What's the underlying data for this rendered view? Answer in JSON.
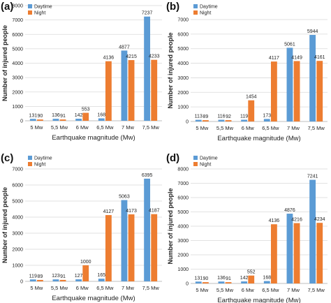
{
  "chart_data": [
    {
      "type": "bar",
      "panel_label": "(a)",
      "categories": [
        "5 Mw",
        "5,5 Mw",
        "6 Mw",
        "6,5 Mw",
        "7 Mw",
        "7,5 Mw"
      ],
      "series": [
        {
          "name": "Daytime",
          "values": [
            131,
            136,
            142,
            168,
            4877,
            7237
          ]
        },
        {
          "name": "Night",
          "values": [
            90,
            91,
            553,
            4136,
            4215,
            4233
          ]
        }
      ],
      "xlabel": "Earthquake magnitude (Mw)",
      "ylabel": "Number of injured people",
      "ylim": [
        0,
        8000
      ],
      "yticks": [
        0,
        1000,
        2000,
        3000,
        4000,
        5000,
        6000,
        7000,
        8000
      ],
      "grid": true,
      "legend": "top-left",
      "colors": [
        "#5b9bd5",
        "#ed7d31"
      ]
    },
    {
      "type": "bar",
      "panel_label": "(b)",
      "categories": [
        "5 Mw",
        "5,5 Mw",
        "6 Mw",
        "6,5 Mw",
        "7 Mw",
        "7,5 Mw"
      ],
      "series": [
        {
          "name": "Daytime",
          "values": [
            113,
            116,
            119,
            173,
            5061,
            5944
          ]
        },
        {
          "name": "Night",
          "values": [
            89,
            92,
            1454,
            4117,
            4149,
            4161
          ]
        }
      ],
      "xlabel": "Earthquake magnitude (Mw)",
      "ylabel": "Number of injured people",
      "ylim": [
        0,
        7000
      ],
      "yticks": [
        0,
        1000,
        2000,
        3000,
        4000,
        5000,
        6000,
        7000
      ],
      "grid": true,
      "legend": "top-left",
      "colors": [
        "#5b9bd5",
        "#ed7d31"
      ]
    },
    {
      "type": "bar",
      "panel_label": "(c)",
      "categories": [
        "5 Mw",
        "5,5 Mw",
        "6 Mw",
        "6,5 Mw",
        "7 Mw",
        "7,5 Mw"
      ],
      "series": [
        {
          "name": "Daytime",
          "values": [
            119,
            123,
            127,
            165,
            5063,
            6395
          ]
        },
        {
          "name": "Night",
          "values": [
            89,
            91,
            1000,
            4127,
            4173,
            4187
          ]
        }
      ],
      "xlabel": "Earthquake magnitude (Mw)",
      "ylabel": "Number of injured people",
      "ylim": [
        0,
        7000
      ],
      "yticks": [
        0,
        1000,
        2000,
        3000,
        4000,
        5000,
        6000,
        7000
      ],
      "grid": true,
      "legend": "top-left",
      "colors": [
        "#5b9bd5",
        "#ed7d31"
      ]
    },
    {
      "type": "bar",
      "panel_label": "(d)",
      "categories": [
        "5 Mw",
        "5,5 Mw",
        "6 Mw",
        "6,5 Mw",
        "7 Mw",
        "7,5 Mw"
      ],
      "series": [
        {
          "name": "Daytime",
          "values": [
            131,
            136,
            142,
            168,
            4876,
            7241
          ]
        },
        {
          "name": "Night",
          "values": [
            90,
            91,
            552,
            4136,
            4216,
            4234
          ]
        }
      ],
      "xlabel": "Earthquake magnitude (Mw)",
      "ylabel": "Number of injured people",
      "ylim": [
        0,
        8000
      ],
      "yticks": [
        0,
        1000,
        2000,
        3000,
        4000,
        5000,
        6000,
        7000,
        8000
      ],
      "grid": true,
      "legend": "top-left",
      "colors": [
        "#5b9bd5",
        "#ed7d31"
      ]
    }
  ]
}
